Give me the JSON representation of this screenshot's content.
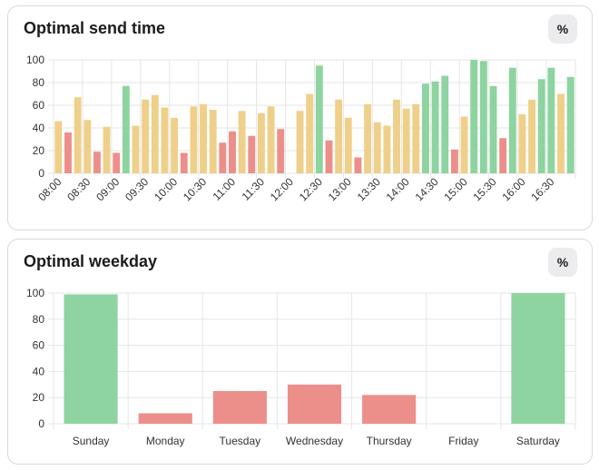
{
  "cards": {
    "send_time": {
      "title": "Optimal send time",
      "toggle_label": "%"
    },
    "weekday": {
      "title": "Optimal weekday",
      "toggle_label": "%"
    }
  },
  "colors": {
    "green": "#8dd4a0",
    "yellow": "#efd08a",
    "red": "#ec8f8a",
    "grid": "#e6e6e6"
  },
  "chart_data": [
    {
      "type": "bar",
      "title": "Optimal send time",
      "ylim": [
        0,
        100
      ],
      "yticks": [
        0,
        20,
        40,
        60,
        80,
        100
      ],
      "x_tick_labels": [
        "08:00",
        "08:30",
        "09:00",
        "09:30",
        "10:00",
        "10:30",
        "11:00",
        "11:30",
        "12:00",
        "12:30",
        "13:00",
        "13:30",
        "14:00",
        "14:30",
        "15:00",
        "15:30",
        "16:00",
        "16:30"
      ],
      "values": [
        46,
        36,
        67,
        47,
        19,
        41,
        18,
        77,
        42,
        65,
        69,
        58,
        49,
        18,
        59,
        61,
        56,
        27,
        37,
        55,
        33,
        53,
        59,
        39,
        0,
        55,
        70,
        95,
        29,
        65,
        49,
        14,
        61,
        45,
        42,
        65,
        57,
        61,
        79,
        81,
        86,
        21,
        50,
        100,
        99,
        77,
        31,
        93,
        52,
        65,
        83,
        93,
        70,
        85
      ],
      "bar_colors": [
        "yellow",
        "red",
        "yellow",
        "yellow",
        "red",
        "yellow",
        "red",
        "green",
        "yellow",
        "yellow",
        "yellow",
        "yellow",
        "yellow",
        "red",
        "yellow",
        "yellow",
        "yellow",
        "red",
        "red",
        "yellow",
        "red",
        "yellow",
        "yellow",
        "red",
        "yellow",
        "yellow",
        "yellow",
        "green",
        "red",
        "yellow",
        "yellow",
        "red",
        "yellow",
        "yellow",
        "yellow",
        "yellow",
        "yellow",
        "yellow",
        "green",
        "green",
        "green",
        "red",
        "yellow",
        "green",
        "green",
        "green",
        "red",
        "green",
        "yellow",
        "yellow",
        "green",
        "green",
        "yellow",
        "green"
      ]
    },
    {
      "type": "bar",
      "title": "Optimal weekday",
      "ylim": [
        0,
        100
      ],
      "yticks": [
        0,
        20,
        40,
        60,
        80,
        100
      ],
      "categories": [
        "Sunday",
        "Monday",
        "Tuesday",
        "Wednesday",
        "Thursday",
        "Friday",
        "Saturday"
      ],
      "values": [
        99,
        8,
        25,
        30,
        22,
        0,
        100
      ],
      "bar_colors": [
        "green",
        "red",
        "red",
        "red",
        "red",
        "red",
        "green"
      ]
    }
  ]
}
